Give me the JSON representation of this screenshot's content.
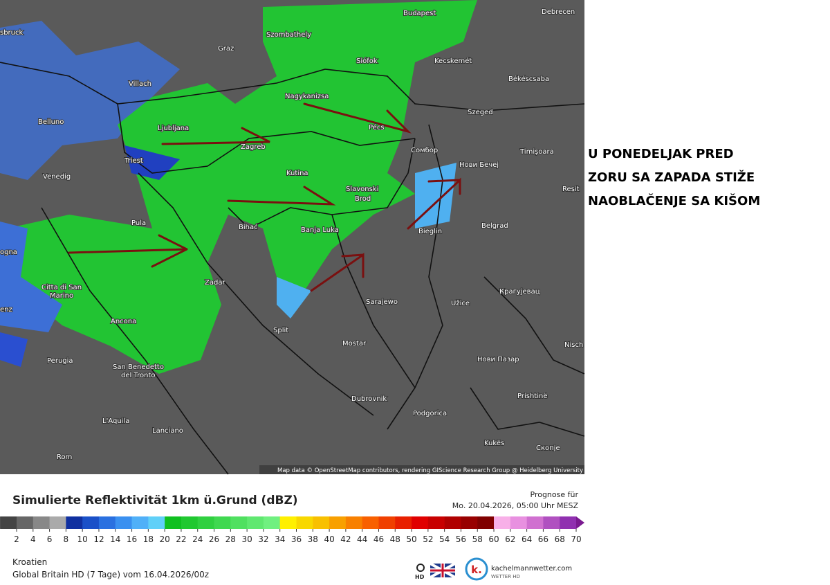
{
  "headline": [
    "U PONEDELJAK PRED",
    "ZORU SA ZAPADA STIŽE",
    "NAOBLAČENJE SA KIŠOM"
  ],
  "map": {
    "cities": [
      "sbruck",
      "Szombathely",
      "Budapest",
      "Debrecen",
      "Graz",
      "Siófok",
      "Kecskemét",
      "Villach",
      "Nagykanizsa",
      "Békéscsaba",
      "Belluno",
      "Ljubljana",
      "Szeged",
      "Pécs",
      "Zagreb",
      "Сомбор",
      "Timișoara",
      "Triest",
      "Нови Бечеј",
      "Venedig",
      "Kutina",
      "Slavonski",
      "Brod",
      "Reșit",
      "Pula",
      "Bihać",
      "Banja Luka",
      "Bieglin",
      "Belgrad",
      "ogna",
      "Zadar",
      "Citta di San",
      "Marino",
      "Sarajewo",
      "Užice",
      "Крагујевац",
      "enz",
      "Ancona",
      "Split",
      "Mostar",
      "Nisch",
      "Perugia",
      "San Benedetto",
      "del Tronto",
      "Нови Пазар",
      "Dubrovnik",
      "Prishtinë",
      "Podgorica",
      "L'Aquila",
      "Lanciano",
      "Kukës",
      "Скопје",
      "Rom"
    ],
    "attribution": "Map data © OpenStreetMap contributors, rendering GIScience Research Group @ Heidelberg University"
  },
  "legend": {
    "title": "Simulierte Reflektivität 1km ü.Grund (dBZ)",
    "forecast_label": "Prognose für",
    "forecast_time": "Mo. 20.04.2026, 05:00 Uhr MESZ",
    "ticks": [
      2,
      4,
      6,
      8,
      10,
      12,
      14,
      16,
      18,
      20,
      22,
      24,
      26,
      28,
      30,
      32,
      34,
      36,
      38,
      40,
      42,
      44,
      46,
      48,
      50,
      52,
      54,
      56,
      58,
      60,
      62,
      64,
      66,
      68,
      70
    ]
  },
  "footer": {
    "region": "Kroatien",
    "model": "Global Britain HD (7 Tage) vom  16.04.2026/00z",
    "hd": "HD",
    "brand": "kachelmannwetter.com",
    "brand_sub": "WETTER HD"
  }
}
